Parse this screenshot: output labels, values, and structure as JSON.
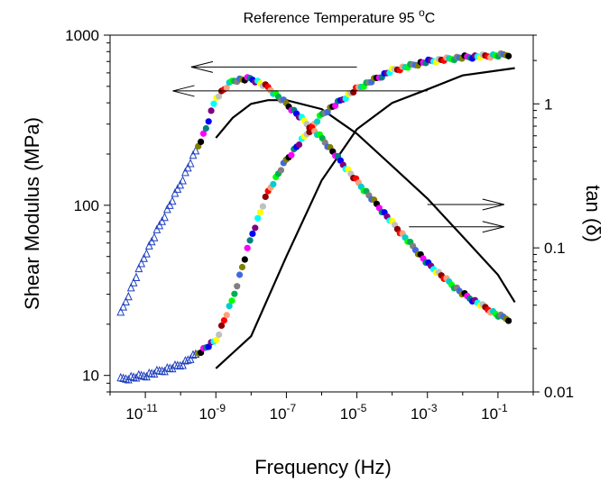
{
  "chart_data": {
    "type": "scatter",
    "title": "Reference Temperature 95 °C",
    "title_text": "Reference Temperature 95 ",
    "title_sup": "o",
    "title_unit": "C",
    "xlabel": "Frequency  (Hz)",
    "ylabel": "Shear Modulus  (MPa)",
    "y2label": "tan (δ)",
    "x_scale": "log",
    "y_scale": "log",
    "y2_scale": "log",
    "xlim": [
      1e-12,
      1
    ],
    "ylim": [
      8,
      1000
    ],
    "y2lim": [
      0.01,
      3
    ],
    "x_ticks": [
      {
        "value": 1e-11,
        "base": "10",
        "exp": "-11"
      },
      {
        "value": 1e-09,
        "base": "10",
        "exp": "-9"
      },
      {
        "value": 1e-07,
        "base": "10",
        "exp": "-7"
      },
      {
        "value": 1e-05,
        "base": "10",
        "exp": "-5"
      },
      {
        "value": 0.001,
        "base": "10",
        "exp": "-3"
      },
      {
        "value": 0.1,
        "base": "10",
        "exp": "-1"
      }
    ],
    "y_ticks": [
      {
        "value": 10,
        "label": "10"
      },
      {
        "value": 100,
        "label": "100"
      },
      {
        "value": 1000,
        "label": "1000"
      }
    ],
    "y2_ticks": [
      {
        "value": 0.01,
        "label": "0.01"
      },
      {
        "value": 0.1,
        "label": "0.1"
      },
      {
        "value": 1,
        "label": "1"
      }
    ],
    "grid": false,
    "legend": "none",
    "marker_colors": [
      "#0000ff",
      "#8b0000",
      "#00b050",
      "#ff00ff",
      "#ffff00",
      "#00ced1",
      "#808000",
      "#800080",
      "#ff0000",
      "#808080",
      "#008080",
      "#c0c0c0",
      "#00ff00",
      "#000000",
      "#00ffff",
      "#ffa07a",
      "#4169e1"
    ],
    "master_storage_modulus": {
      "axis": "left",
      "x": [
        2e-12,
        1e-11,
        1e-10,
        1e-09,
        3e-09,
        1e-08,
        3e-08,
        1e-07,
        1e-06,
        1e-05,
        0.0001,
        0.001,
        0.01,
        0.1,
        0.2
      ],
      "y": [
        9.5,
        10,
        11.5,
        16,
        28,
        65,
        120,
        185,
        340,
        485,
        620,
        700,
        740,
        760,
        770
      ]
    },
    "master_tan_delta": {
      "axis": "right",
      "x": [
        2e-12,
        1e-11,
        1e-10,
        5e-10,
        1e-09,
        3e-09,
        1e-08,
        3e-08,
        1e-07,
        1e-06,
        1e-05,
        0.0001,
        0.001,
        0.01,
        0.1,
        0.2
      ],
      "y": [
        0.035,
        0.09,
        0.28,
        0.65,
        1.1,
        1.45,
        1.5,
        1.3,
        1.0,
        0.58,
        0.29,
        0.15,
        0.078,
        0.048,
        0.034,
        0.032
      ]
    },
    "solid_storage_modulus": {
      "axis": "left",
      "x": [
        1e-09,
        1e-08,
        1e-07,
        1e-06,
        1e-05,
        0.0001,
        0.001,
        0.01,
        0.3
      ],
      "y": [
        11,
        17,
        50,
        140,
        280,
        400,
        480,
        580,
        640
      ]
    },
    "solid_tan_delta": {
      "axis": "right",
      "x": [
        1e-09,
        3e-09,
        1e-08,
        3e-08,
        1e-07,
        1e-06,
        1e-05,
        0.0001,
        0.001,
        0.01,
        0.1,
        0.3
      ],
      "y": [
        0.58,
        0.8,
        1.0,
        1.06,
        1.06,
        0.92,
        0.62,
        0.37,
        0.22,
        0.12,
        0.065,
        0.042
      ]
    },
    "annotations": [
      {
        "type": "arrow",
        "direction": "left",
        "from": [
          1e-05,
          650
        ],
        "to": [
          2e-10,
          650
        ],
        "meaning": "points to left axis"
      },
      {
        "type": "arrow",
        "direction": "left",
        "from": [
          0.001,
          470
        ],
        "to": [
          6e-11,
          470
        ],
        "meaning": "points to left axis"
      },
      {
        "type": "arrow",
        "direction": "right",
        "from": [
          0.001,
          0.2
        ],
        "to": [
          0.15,
          0.2
        ],
        "meaning": "points to right axis"
      },
      {
        "type": "arrow",
        "direction": "right",
        "from": [
          0.0003,
          0.14
        ],
        "to": [
          0.15,
          0.14
        ],
        "meaning": "points to right axis"
      }
    ]
  }
}
